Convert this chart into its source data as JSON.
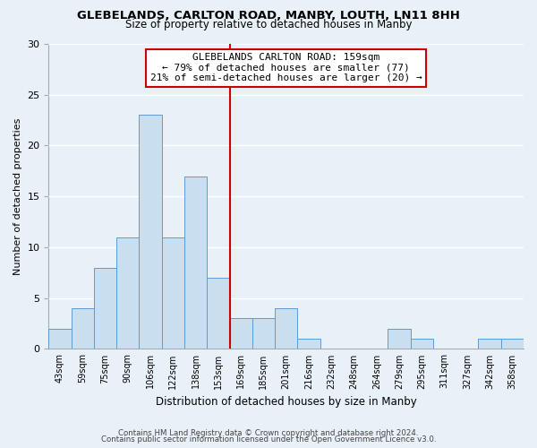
{
  "title": "GLEBELANDS, CARLTON ROAD, MANBY, LOUTH, LN11 8HH",
  "subtitle": "Size of property relative to detached houses in Manby",
  "xlabel": "Distribution of detached houses by size in Manby",
  "ylabel": "Number of detached properties",
  "bin_labels": [
    "43sqm",
    "59sqm",
    "75sqm",
    "90sqm",
    "106sqm",
    "122sqm",
    "138sqm",
    "153sqm",
    "169sqm",
    "185sqm",
    "201sqm",
    "216sqm",
    "232sqm",
    "248sqm",
    "264sqm",
    "279sqm",
    "295sqm",
    "311sqm",
    "327sqm",
    "342sqm",
    "358sqm"
  ],
  "bar_values": [
    2,
    4,
    8,
    11,
    23,
    11,
    17,
    7,
    3,
    3,
    4,
    1,
    0,
    0,
    0,
    2,
    1,
    0,
    0,
    1,
    1
  ],
  "bar_color": "#c9dff0",
  "bar_edge_color": "#5b9bd5",
  "reference_line_x": 7.5,
  "reference_line_label": "GLEBELANDS CARLTON ROAD: 159sqm",
  "annotation_line1": "← 79% of detached houses are smaller (77)",
  "annotation_line2": "21% of semi-detached houses are larger (20) →",
  "annotation_box_color": "#ffffff",
  "annotation_box_edge_color": "#cc0000",
  "ylim": [
    0,
    30
  ],
  "yticks": [
    0,
    5,
    10,
    15,
    20,
    25,
    30
  ],
  "footer_line1": "Contains HM Land Registry data © Crown copyright and database right 2024.",
  "footer_line2": "Contains public sector information licensed under the Open Government Licence v3.0.",
  "bg_color": "#e8f0f8"
}
